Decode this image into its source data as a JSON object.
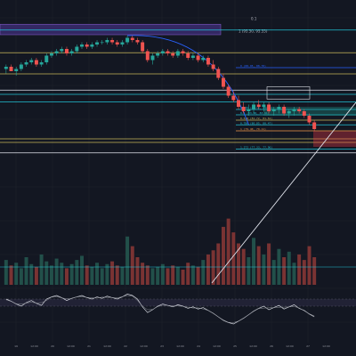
{
  "theme": {
    "background": "#131722",
    "grid": "#1e222d",
    "up": "#26a69a",
    "down": "#ef5350",
    "vol_up": "#22504a",
    "vol_down": "#7a3333",
    "zone_fill": "#3a2b6e",
    "zone_border": "#7e57c2",
    "arc": "#2962ff",
    "hline_yellow": "#c8b65a",
    "hline_white": "#e0e3eb",
    "trend_white": "#e0e3eb",
    "cyan": "#22c3d6",
    "teal": "#1f8f84",
    "red_zone": "#f23645",
    "orange": "#f09848",
    "osc_line": "#d1d4dc",
    "osc_band": "#2b2a42"
  },
  "chart_data": {
    "type": "candlestick",
    "title": "",
    "xlabel": "",
    "ylabel": "",
    "ylim": [
      0,
      100
    ],
    "grid": true,
    "x_tick_labels": [
      "19",
      "12:00",
      "20",
      "12:00",
      "21",
      "12:00",
      "22",
      "12:00",
      "23",
      "12:00",
      "24",
      "12:00",
      "25",
      "12:00",
      "26",
      "12:00",
      "27",
      "12:00"
    ],
    "top_zone": {
      "low": 88.4,
      "high": 93.1,
      "label_left": "0.1",
      "label_right": "1 (95.50, 95.55)"
    },
    "horizontal_levels": [
      {
        "value": 90.5,
        "color": "cyan",
        "label": ""
      },
      {
        "value": 80.3,
        "color": "hline_yellow",
        "label": ""
      },
      {
        "value": 73.6,
        "color": "arc",
        "label": "0 (88.95, 88.78)"
      },
      {
        "value": 70.8,
        "color": "hline_yellow",
        "label": ""
      },
      {
        "value": 63.5,
        "color": "hline_white",
        "label": ""
      },
      {
        "value": 61.6,
        "color": "cyan",
        "label": ""
      },
      {
        "value": 58.2,
        "color": "cyan",
        "label": ""
      },
      {
        "value": 54.8,
        "color": "cyan",
        "label": "0.236 (84.10, 85.05)"
      },
      {
        "value": 52.4,
        "color": "cyan",
        "label": "0.5 (83.40, 83.91)"
      },
      {
        "value": 50.0,
        "color": "hline_yellow",
        "label": "0.618 (81.72, 81.61)"
      },
      {
        "value": 47.9,
        "color": "cyan",
        "label": "0.786 (80.85, 80.47)"
      },
      {
        "value": 45.2,
        "color": "orange",
        "label": "1 (79.40, 79.11)"
      },
      {
        "value": 41.6,
        "color": "hline_yellow",
        "label": ""
      },
      {
        "value": 40.0,
        "color": "hline_yellow",
        "label": ""
      },
      {
        "value": 37.0,
        "color": "cyan",
        "label": "1.272 (77.33, 77.96)"
      },
      {
        "value": 35.3,
        "color": "hline_white",
        "label": ""
      }
    ],
    "series": [
      {
        "name": "",
        "ohlc": [
          [
            73,
            75,
            71,
            74
          ],
          [
            74,
            75,
            72,
            72
          ],
          [
            72,
            74,
            70,
            73
          ],
          [
            73,
            76,
            72,
            75
          ],
          [
            75,
            77,
            74,
            76
          ],
          [
            76,
            78,
            75,
            77
          ],
          [
            77,
            78,
            74,
            75
          ],
          [
            75,
            77,
            74,
            76
          ],
          [
            76,
            80,
            75,
            79
          ],
          [
            79,
            81,
            78,
            80
          ],
          [
            80,
            82,
            79,
            81
          ],
          [
            81,
            83,
            80,
            82
          ],
          [
            82,
            83,
            79,
            80
          ],
          [
            80,
            82,
            79,
            81
          ],
          [
            81,
            84,
            80,
            83
          ],
          [
            83,
            85,
            82,
            84
          ],
          [
            84,
            85,
            82,
            83
          ],
          [
            83,
            85,
            82,
            84
          ],
          [
            84,
            86,
            83,
            85
          ],
          [
            85,
            86,
            84,
            85
          ],
          [
            85,
            87,
            84,
            86
          ],
          [
            86,
            87,
            84,
            85
          ],
          [
            85,
            86,
            83,
            84
          ],
          [
            84,
            86,
            83,
            85
          ],
          [
            85,
            88,
            84,
            87
          ],
          [
            87,
            88,
            85,
            86
          ],
          [
            86,
            87,
            84,
            85
          ],
          [
            85,
            86,
            80,
            81
          ],
          [
            81,
            82,
            76,
            77
          ],
          [
            77,
            80,
            75,
            79
          ],
          [
            79,
            81,
            78,
            80
          ],
          [
            80,
            82,
            79,
            81
          ],
          [
            81,
            82,
            79,
            80
          ],
          [
            80,
            81,
            78,
            79
          ],
          [
            79,
            82,
            78,
            81
          ],
          [
            81,
            82,
            79,
            80
          ],
          [
            80,
            81,
            77,
            78
          ],
          [
            78,
            80,
            77,
            79
          ],
          [
            79,
            80,
            76,
            77
          ],
          [
            77,
            79,
            76,
            78
          ],
          [
            78,
            79,
            74,
            75
          ],
          [
            75,
            77,
            72,
            73
          ],
          [
            73,
            74,
            68,
            69
          ],
          [
            69,
            71,
            64,
            65
          ],
          [
            65,
            66,
            60,
            61
          ],
          [
            61,
            63,
            58,
            59
          ],
          [
            59,
            61,
            55,
            56
          ],
          [
            56,
            58,
            53,
            54
          ],
          [
            54,
            57,
            52,
            55
          ],
          [
            55,
            58,
            53,
            57
          ],
          [
            57,
            59,
            55,
            56
          ],
          [
            56,
            58,
            54,
            57
          ],
          [
            57,
            58,
            53,
            54
          ],
          [
            54,
            56,
            52,
            55
          ],
          [
            55,
            57,
            53,
            56
          ],
          [
            56,
            57,
            52,
            53
          ],
          [
            53,
            55,
            51,
            54
          ],
          [
            54,
            56,
            52,
            55
          ],
          [
            55,
            56,
            53,
            54
          ],
          [
            54,
            55,
            51,
            52
          ],
          [
            52,
            53,
            48,
            49
          ],
          [
            49,
            50,
            45,
            46
          ]
        ]
      }
    ],
    "volume": [
      18,
      14,
      16,
      12,
      20,
      15,
      13,
      22,
      17,
      14,
      19,
      16,
      12,
      15,
      18,
      21,
      14,
      13,
      16,
      12,
      15,
      17,
      14,
      13,
      35,
      28,
      20,
      16,
      14,
      12,
      13,
      15,
      12,
      14,
      13,
      11,
      16,
      14,
      13,
      18,
      22,
      25,
      30,
      42,
      48,
      38,
      30,
      26,
      20,
      34,
      28,
      22,
      30,
      18,
      26,
      20,
      24,
      16,
      22,
      18,
      28,
      20
    ],
    "oscillator": [
      55,
      52,
      48,
      45,
      50,
      53,
      49,
      46,
      55,
      58,
      60,
      57,
      53,
      56,
      58,
      60,
      57,
      55,
      58,
      56,
      59,
      57,
      55,
      58,
      62,
      60,
      55,
      44,
      36,
      40,
      45,
      48,
      46,
      44,
      47,
      45,
      42,
      44,
      41,
      43,
      39,
      35,
      30,
      25,
      22,
      20,
      24,
      28,
      33,
      38,
      42,
      45,
      40,
      43,
      46,
      41,
      44,
      47,
      42,
      39,
      34,
      30
    ]
  }
}
